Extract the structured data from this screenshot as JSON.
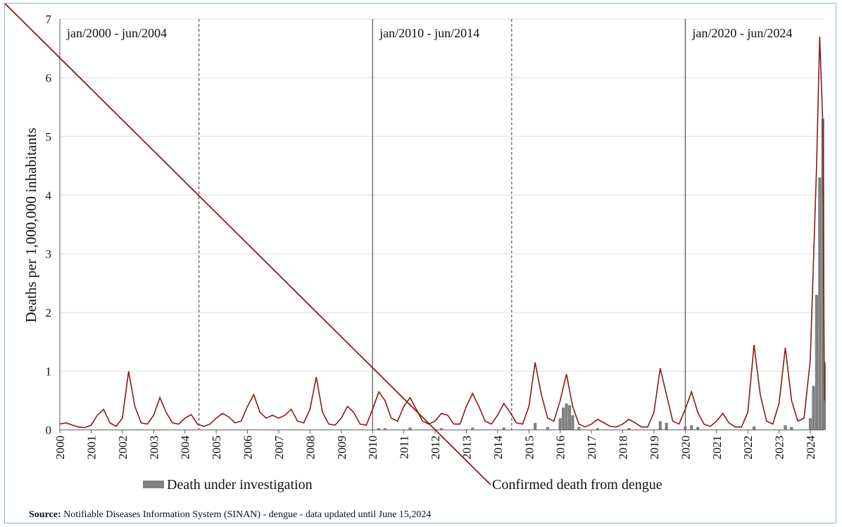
{
  "chart_data": {
    "type": "bar+line",
    "ylabel": "Deaths per 1,000,000 inhabitants",
    "ylim": [
      0,
      7
    ],
    "yticks": [
      "0",
      "1",
      "2",
      "3",
      "4",
      "5",
      "6",
      "7"
    ],
    "xticks": [
      "2000",
      "2001",
      "2002",
      "2003",
      "2004",
      "2005",
      "2006",
      "2007",
      "2008",
      "2009",
      "2010",
      "2011",
      "2012",
      "2013",
      "2014",
      "2015",
      "2016",
      "2017",
      "2018",
      "2019",
      "2020",
      "2021",
      "2022",
      "2023",
      "2024"
    ],
    "xlim": [
      2000,
      2024.45
    ],
    "grid": "horizontal",
    "legend_position": "bottom",
    "period_annotations": [
      {
        "label": "jan/2000 - jun/2004",
        "start": 2000.0,
        "end": 2004.45
      },
      {
        "label": "jan/2010 - jun/2014",
        "start": 2010.0,
        "end": 2014.45
      },
      {
        "label": "jan/2020 - jun/2024",
        "start": 2020.0,
        "end": 2024.45
      }
    ],
    "separators": [
      {
        "x": 2004.45,
        "style": "dashed"
      },
      {
        "x": 2010.0,
        "style": "solid"
      },
      {
        "x": 2014.45,
        "style": "dashed"
      },
      {
        "x": 2020.0,
        "style": "solid"
      }
    ],
    "series": [
      {
        "name": "Confirmed death from dengue",
        "kind": "line",
        "color": "#8b1a1a",
        "points": [
          [
            2000.0,
            0.1
          ],
          [
            2000.2,
            0.12
          ],
          [
            2000.4,
            0.08
          ],
          [
            2000.6,
            0.05
          ],
          [
            2000.8,
            0.04
          ],
          [
            2001.0,
            0.08
          ],
          [
            2001.2,
            0.25
          ],
          [
            2001.4,
            0.35
          ],
          [
            2001.6,
            0.12
          ],
          [
            2001.8,
            0.06
          ],
          [
            2002.0,
            0.2
          ],
          [
            2002.2,
            1.0
          ],
          [
            2002.4,
            0.4
          ],
          [
            2002.6,
            0.12
          ],
          [
            2002.8,
            0.1
          ],
          [
            2003.0,
            0.25
          ],
          [
            2003.2,
            0.55
          ],
          [
            2003.4,
            0.3
          ],
          [
            2003.6,
            0.12
          ],
          [
            2003.8,
            0.1
          ],
          [
            2004.0,
            0.2
          ],
          [
            2004.2,
            0.26
          ],
          [
            2004.4,
            0.1
          ],
          [
            2004.6,
            0.06
          ],
          [
            2004.8,
            0.1
          ],
          [
            2005.0,
            0.2
          ],
          [
            2005.2,
            0.28
          ],
          [
            2005.4,
            0.22
          ],
          [
            2005.6,
            0.12
          ],
          [
            2005.8,
            0.15
          ],
          [
            2006.0,
            0.4
          ],
          [
            2006.2,
            0.6
          ],
          [
            2006.4,
            0.3
          ],
          [
            2006.6,
            0.2
          ],
          [
            2006.8,
            0.25
          ],
          [
            2007.0,
            0.2
          ],
          [
            2007.2,
            0.25
          ],
          [
            2007.4,
            0.35
          ],
          [
            2007.6,
            0.15
          ],
          [
            2007.8,
            0.12
          ],
          [
            2008.0,
            0.35
          ],
          [
            2008.2,
            0.9
          ],
          [
            2008.4,
            0.3
          ],
          [
            2008.6,
            0.1
          ],
          [
            2008.8,
            0.08
          ],
          [
            2009.0,
            0.2
          ],
          [
            2009.2,
            0.4
          ],
          [
            2009.4,
            0.3
          ],
          [
            2009.6,
            0.1
          ],
          [
            2009.8,
            0.08
          ],
          [
            2010.0,
            0.35
          ],
          [
            2010.2,
            0.65
          ],
          [
            2010.4,
            0.5
          ],
          [
            2010.6,
            0.2
          ],
          [
            2010.8,
            0.15
          ],
          [
            2011.0,
            0.4
          ],
          [
            2011.2,
            0.55
          ],
          [
            2011.4,
            0.35
          ],
          [
            2011.6,
            0.15
          ],
          [
            2011.8,
            0.1
          ],
          [
            2012.0,
            0.15
          ],
          [
            2012.2,
            0.28
          ],
          [
            2012.4,
            0.25
          ],
          [
            2012.6,
            0.1
          ],
          [
            2012.8,
            0.1
          ],
          [
            2013.0,
            0.4
          ],
          [
            2013.2,
            0.62
          ],
          [
            2013.4,
            0.4
          ],
          [
            2013.6,
            0.15
          ],
          [
            2013.8,
            0.1
          ],
          [
            2014.0,
            0.25
          ],
          [
            2014.2,
            0.45
          ],
          [
            2014.4,
            0.3
          ],
          [
            2014.6,
            0.12
          ],
          [
            2014.8,
            0.1
          ],
          [
            2015.0,
            0.4
          ],
          [
            2015.2,
            1.15
          ],
          [
            2015.4,
            0.6
          ],
          [
            2015.6,
            0.2
          ],
          [
            2015.8,
            0.15
          ],
          [
            2016.0,
            0.5
          ],
          [
            2016.2,
            0.95
          ],
          [
            2016.4,
            0.4
          ],
          [
            2016.6,
            0.1
          ],
          [
            2016.8,
            0.05
          ],
          [
            2017.0,
            0.1
          ],
          [
            2017.2,
            0.18
          ],
          [
            2017.4,
            0.12
          ],
          [
            2017.6,
            0.06
          ],
          [
            2017.8,
            0.05
          ],
          [
            2018.0,
            0.1
          ],
          [
            2018.2,
            0.18
          ],
          [
            2018.4,
            0.12
          ],
          [
            2018.6,
            0.05
          ],
          [
            2018.8,
            0.05
          ],
          [
            2019.0,
            0.3
          ],
          [
            2019.2,
            1.05
          ],
          [
            2019.4,
            0.6
          ],
          [
            2019.6,
            0.15
          ],
          [
            2019.8,
            0.1
          ],
          [
            2020.0,
            0.35
          ],
          [
            2020.2,
            0.65
          ],
          [
            2020.4,
            0.3
          ],
          [
            2020.6,
            0.1
          ],
          [
            2020.8,
            0.06
          ],
          [
            2021.0,
            0.15
          ],
          [
            2021.2,
            0.28
          ],
          [
            2021.4,
            0.12
          ],
          [
            2021.6,
            0.05
          ],
          [
            2021.8,
            0.05
          ],
          [
            2022.0,
            0.3
          ],
          [
            2022.2,
            1.45
          ],
          [
            2022.4,
            0.6
          ],
          [
            2022.6,
            0.15
          ],
          [
            2022.8,
            0.1
          ],
          [
            2023.0,
            0.45
          ],
          [
            2023.2,
            1.4
          ],
          [
            2023.4,
            0.5
          ],
          [
            2023.6,
            0.15
          ],
          [
            2023.8,
            0.2
          ],
          [
            2024.0,
            1.2
          ],
          [
            2024.2,
            4.5
          ],
          [
            2024.3,
            6.7
          ],
          [
            2024.4,
            5.2
          ],
          [
            2024.45,
            0.5
          ]
        ]
      },
      {
        "name": "Death under investigation",
        "kind": "bar",
        "color": "#808080",
        "points": [
          [
            2010.2,
            0.03
          ],
          [
            2010.4,
            0.03
          ],
          [
            2011.2,
            0.04
          ],
          [
            2012.2,
            0.03
          ],
          [
            2013.2,
            0.04
          ],
          [
            2014.2,
            0.04
          ],
          [
            2015.2,
            0.12
          ],
          [
            2015.6,
            0.05
          ],
          [
            2016.0,
            0.2
          ],
          [
            2016.1,
            0.38
          ],
          [
            2016.2,
            0.45
          ],
          [
            2016.3,
            0.42
          ],
          [
            2016.4,
            0.25
          ],
          [
            2016.6,
            0.05
          ],
          [
            2017.2,
            0.03
          ],
          [
            2018.2,
            0.03
          ],
          [
            2019.2,
            0.15
          ],
          [
            2019.4,
            0.12
          ],
          [
            2020.0,
            0.06
          ],
          [
            2020.2,
            0.08
          ],
          [
            2020.4,
            0.05
          ],
          [
            2022.2,
            0.06
          ],
          [
            2023.2,
            0.08
          ],
          [
            2023.4,
            0.05
          ],
          [
            2024.0,
            0.2
          ],
          [
            2024.1,
            0.75
          ],
          [
            2024.2,
            2.3
          ],
          [
            2024.3,
            4.3
          ],
          [
            2024.4,
            5.3
          ],
          [
            2024.45,
            1.15
          ]
        ]
      }
    ]
  },
  "source": {
    "label": "Source:",
    "text": "Notifiable Diseases Information System (SINAN) - dengue - data updated until June 15,2024"
  }
}
